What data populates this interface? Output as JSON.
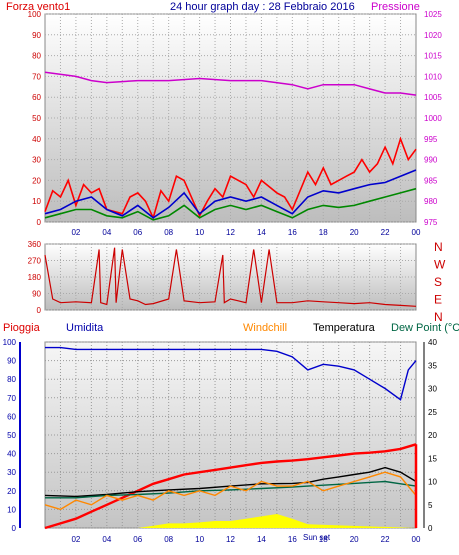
{
  "title": "24 hour graph day : 28 Febbraio 2016",
  "colors": {
    "red": "#ff0000",
    "darkred": "#cc0000",
    "blue": "#0000cc",
    "navy": "#000099",
    "green": "#008800",
    "magenta": "#cc00cc",
    "orange": "#ff8800",
    "yellow": "#ffff00",
    "black": "#000000",
    "teal": "#006644",
    "gridbg_top": "#ffffff",
    "gridbg_bottom": "#c8c8c8"
  },
  "chart_data": [
    {
      "type": "line",
      "panel": "wind",
      "title": "24 hour graph day : 28 Febbraio 2016",
      "left_label": "Forza vento1",
      "right_label": "Pressione",
      "yticks_left": [
        "0",
        "10",
        "20",
        "30",
        "40",
        "50",
        "60",
        "70",
        "80",
        "90",
        "100"
      ],
      "yticks_right": [
        "975",
        "980",
        "985",
        "990",
        "995",
        "1000",
        "1005",
        "1010",
        "1015",
        "1020",
        "1025"
      ],
      "xticks": [
        "02",
        "04",
        "06",
        "08",
        "10",
        "12",
        "14",
        "16",
        "18",
        "20",
        "22",
        "00"
      ],
      "ylim_left": [
        0,
        100
      ],
      "ylim_right": [
        975,
        1025
      ],
      "series": [
        {
          "key": "pressione",
          "axis": "right",
          "color": "magenta",
          "x": [
            0,
            2,
            3,
            4,
            6,
            8,
            10,
            12,
            14,
            16,
            17,
            18,
            20,
            21,
            22,
            23,
            24
          ],
          "y": [
            1011,
            1010,
            1009,
            1008.5,
            1009,
            1009,
            1009.5,
            1009,
            1009,
            1008,
            1007,
            1008,
            1008,
            1007,
            1006,
            1006,
            1005.5
          ]
        },
        {
          "key": "raffica",
          "axis": "left",
          "color": "red",
          "x": [
            0,
            0.5,
            1,
            1.5,
            2,
            2.5,
            3,
            3.5,
            4,
            5,
            5.5,
            6,
            6.5,
            7,
            7.5,
            8,
            8.5,
            9,
            10,
            10.5,
            11,
            11.5,
            12,
            13,
            13.5,
            14,
            15,
            15.5,
            16,
            17,
            17.5,
            18,
            18.5,
            19,
            19.5,
            20,
            20.5,
            21,
            21.5,
            22,
            22.5,
            23,
            23.5,
            24
          ],
          "y": [
            5,
            15,
            12,
            20,
            8,
            18,
            14,
            16,
            6,
            4,
            12,
            14,
            10,
            2,
            15,
            10,
            22,
            20,
            3,
            10,
            16,
            12,
            22,
            18,
            12,
            20,
            14,
            12,
            6,
            24,
            18,
            26,
            18,
            20,
            22,
            24,
            30,
            24,
            28,
            36,
            28,
            40,
            30,
            35
          ]
        },
        {
          "key": "media",
          "axis": "left",
          "color": "blue",
          "x": [
            0,
            1,
            2,
            3,
            4,
            5,
            6,
            7,
            8,
            9,
            10,
            11,
            12,
            13,
            14,
            15,
            16,
            17,
            18,
            19,
            20,
            21,
            22,
            23,
            24
          ],
          "y": [
            4,
            6,
            10,
            12,
            6,
            3,
            8,
            2,
            7,
            14,
            4,
            10,
            12,
            10,
            12,
            8,
            4,
            12,
            15,
            14,
            16,
            18,
            19,
            22,
            25
          ]
        },
        {
          "key": "vento",
          "axis": "left",
          "color": "green",
          "x": [
            0,
            1,
            2,
            3,
            4,
            5,
            6,
            7,
            8,
            9,
            10,
            11,
            12,
            13,
            14,
            15,
            16,
            17,
            18,
            19,
            20,
            21,
            22,
            23,
            24
          ],
          "y": [
            2,
            4,
            6,
            6,
            3,
            2,
            5,
            1,
            3,
            8,
            2,
            6,
            8,
            6,
            8,
            5,
            2,
            6,
            8,
            7,
            8,
            10,
            12,
            14,
            16
          ]
        }
      ]
    },
    {
      "type": "line",
      "panel": "direction",
      "right_labels": [
        "N",
        "W",
        "S",
        "E",
        "N"
      ],
      "yticks_left": [
        "0",
        "90",
        "180",
        "270",
        "360"
      ],
      "ylim": [
        0,
        360
      ],
      "series": [
        {
          "key": "direzione",
          "color": "darkred",
          "x": [
            0,
            0.5,
            1,
            2,
            3,
            3.5,
            3.6,
            4,
            4.5,
            4.6,
            5,
            5.5,
            6,
            6.5,
            7,
            8,
            8.5,
            9,
            10,
            11,
            11.5,
            11.6,
            12,
            12.5,
            13,
            13.5,
            14,
            14.5,
            15,
            16,
            17,
            18,
            19,
            20,
            21,
            22,
            23,
            24
          ],
          "y": [
            300,
            60,
            40,
            45,
            40,
            330,
            40,
            30,
            340,
            40,
            330,
            60,
            50,
            30,
            35,
            60,
            330,
            50,
            40,
            45,
            300,
            40,
            60,
            50,
            40,
            330,
            40,
            330,
            40,
            40,
            50,
            45,
            40,
            35,
            40,
            30,
            25,
            20
          ]
        }
      ]
    },
    {
      "type": "line",
      "panel": "weather",
      "legend": [
        "Pioggia",
        "Umidita",
        "Windchill",
        "Temperatura",
        "Dew Point (°C"
      ],
      "yticks_left": [
        "0",
        "10",
        "20",
        "30",
        "40",
        "50",
        "60",
        "70",
        "80",
        "90",
        "100"
      ],
      "yticks_right": [
        "0",
        "5",
        "10",
        "15",
        "20",
        "25",
        "30",
        "35",
        "40"
      ],
      "xticks": [
        "02",
        "04",
        "06",
        "08",
        "10",
        "12",
        "14",
        "16",
        "18",
        "20",
        "22",
        "00"
      ],
      "annotation": "Sun set",
      "ylim_left": [
        0,
        100
      ],
      "ylim_right": [
        0,
        40
      ],
      "series": [
        {
          "key": "umidita",
          "axis": "left",
          "color": "blue",
          "x": [
            0,
            1,
            2,
            4,
            6,
            8,
            10,
            12,
            14,
            15,
            16,
            17,
            18,
            19,
            20,
            21,
            22,
            23,
            23.5,
            24
          ],
          "y": [
            97,
            97,
            96,
            96,
            96,
            96,
            96,
            96,
            96,
            95,
            92,
            85,
            88,
            87,
            85,
            80,
            75,
            69,
            85,
            90
          ]
        },
        {
          "key": "pioggia",
          "axis": "right",
          "color": "red",
          "x": [
            0,
            1,
            2,
            3,
            4,
            5,
            6,
            7,
            8,
            9,
            10,
            11,
            12,
            13,
            14,
            15,
            16,
            17,
            18,
            19,
            20,
            21,
            22,
            23,
            24
          ],
          "y": [
            0,
            1,
            2,
            3.5,
            5,
            6.5,
            8,
            9.5,
            10.5,
            11.5,
            12,
            12.5,
            13,
            13.5,
            14,
            14.3,
            14.5,
            14.8,
            15.2,
            15.6,
            16,
            16.2,
            16.5,
            17,
            18
          ]
        },
        {
          "key": "temperatura",
          "axis": "right",
          "color": "black",
          "x": [
            0,
            2,
            4,
            6,
            8,
            10,
            12,
            14,
            16,
            17,
            18,
            19,
            20,
            21,
            22,
            23,
            24
          ],
          "y": [
            7,
            6.8,
            7.2,
            7.8,
            8.2,
            8.5,
            9,
            9.5,
            9.6,
            9.8,
            10.5,
            11,
            11.5,
            12,
            13,
            12,
            10
          ]
        },
        {
          "key": "dewpoint",
          "axis": "right",
          "color": "teal",
          "x": [
            0,
            2,
            4,
            6,
            8,
            10,
            12,
            14,
            16,
            17,
            18,
            19,
            20,
            21,
            22,
            23,
            24
          ],
          "y": [
            6.5,
            6.5,
            7,
            7.2,
            7.5,
            8,
            8.2,
            8.5,
            8.8,
            9,
            9.2,
            9.4,
            9.6,
            9.8,
            10,
            9.5,
            9
          ]
        },
        {
          "key": "windchill",
          "axis": "right",
          "color": "orange",
          "x": [
            0,
            1,
            2,
            3,
            4,
            5,
            6,
            7,
            8,
            9,
            10,
            11,
            12,
            13,
            14,
            15,
            16,
            17,
            18,
            19,
            20,
            21,
            22,
            23,
            24
          ],
          "y": [
            5,
            4,
            6,
            5,
            7,
            6,
            7,
            6,
            8,
            7,
            8,
            7,
            9,
            8,
            10,
            9,
            9,
            10,
            8,
            9,
            10,
            11,
            12,
            11,
            7
          ]
        },
        {
          "key": "solare",
          "axis": "right",
          "color": "yellow",
          "x": [
            0,
            6,
            7,
            8,
            9,
            10,
            11,
            12,
            13,
            14,
            15,
            16,
            17,
            24
          ],
          "y": [
            0,
            0,
            0.5,
            1,
            1,
            1.2,
            1.5,
            1.5,
            2,
            2.5,
            3,
            2,
            0.8,
            0
          ]
        }
      ]
    }
  ]
}
